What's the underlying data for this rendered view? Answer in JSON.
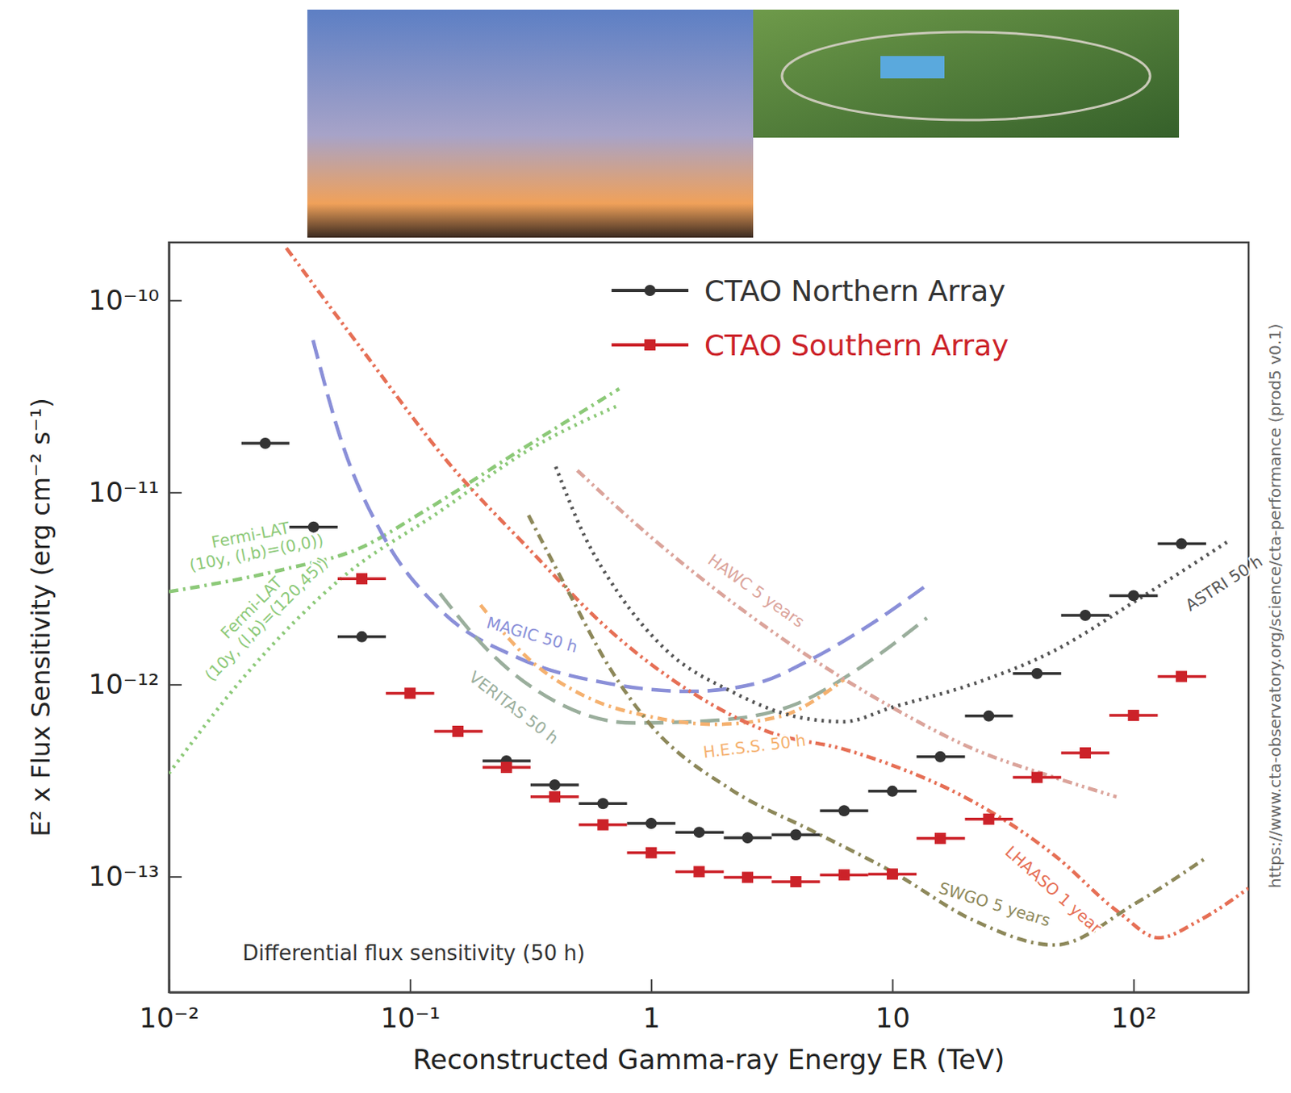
{
  "chart_data": {
    "type": "line",
    "x_label": "Reconstructed Gamma-ray Energy ER (TeV)",
    "y_label": "E² x Flux Sensitivity (erg cm⁻² s⁻¹)",
    "annotations": [
      "Differential flux sensitivity (50 h)",
      "https://www.cta-observatory.org/science/cta-performance (prod5 v0.1)"
    ],
    "log": true,
    "grid": false,
    "legend": "top",
    "xlim": [
      0.01,
      300
    ],
    "ylim": [
      2.5e-14,
      2e-10
    ],
    "xticks": [
      {
        "value": 0.01,
        "label": "10⁻²"
      },
      {
        "value": 0.1,
        "label": "10⁻¹"
      },
      1,
      10,
      {
        "value": 100,
        "label": "10²"
      }
    ],
    "yticks": [
      {
        "value": 1e-10,
        "label": "10⁻¹⁰"
      },
      {
        "value": 1e-11,
        "label": "10⁻¹¹"
      },
      {
        "value": 1e-12,
        "label": "10⁻¹²"
      },
      {
        "value": 1e-13,
        "label": "10⁻¹³"
      }
    ],
    "series": [
      {
        "name": "CTAO Northern Array",
        "type": "scatter",
        "marker": "circle",
        "color": "#333333",
        "x": [
          0.0251,
          0.0398,
          0.0631,
          0.1,
          0.158,
          0.251,
          0.398,
          0.631,
          1,
          1.58,
          2.51,
          3.98,
          6.31,
          10,
          15.8,
          25.1,
          39.8,
          63.1,
          100,
          158
        ],
        "bins": [
          0.02,
          0.0316,
          0.0501,
          0.0794,
          0.126,
          0.2,
          0.316,
          0.501,
          0.794,
          1.26,
          2,
          3.16,
          5.01,
          7.94,
          12.6,
          20,
          31.6,
          50.1,
          79.4,
          126,
          200
        ],
        "values": [
          1.8e-11,
          6.6e-12,
          1.77e-12,
          null,
          null,
          4e-13,
          3e-13,
          2.4e-13,
          1.89e-13,
          1.7e-13,
          1.59e-13,
          1.65e-13,
          2.2e-13,
          2.78e-13,
          4.2e-13,
          6.85e-13,
          1.14e-12,
          2.29e-12,
          2.9e-12,
          5.4e-12
        ]
      },
      {
        "name": "CTAO Southern Array",
        "type": "scatter",
        "marker": "square",
        "color": "#cc2229",
        "x": [
          0.0251,
          0.0398,
          0.0631,
          0.1,
          0.158,
          0.251,
          0.398,
          0.631,
          1,
          1.58,
          2.51,
          3.98,
          6.31,
          10,
          15.8,
          25.1,
          39.8,
          63.1,
          100,
          158
        ],
        "bins": [
          0.02,
          0.0316,
          0.0501,
          0.0794,
          0.126,
          0.2,
          0.316,
          0.501,
          0.794,
          1.26,
          2,
          3.16,
          5.01,
          7.94,
          12.6,
          20,
          31.6,
          50.1,
          79.4,
          126,
          200
        ],
        "values": [
          null,
          null,
          3.55e-12,
          9e-13,
          5.7e-13,
          3.7e-13,
          2.6e-13,
          1.86e-13,
          1.33e-13,
          1.06e-13,
          9.9e-14,
          9.4e-14,
          1.02e-13,
          1.03e-13,
          1.58e-13,
          1.99e-13,
          3.28e-13,
          4.4e-13,
          6.9e-13,
          1.1e-12
        ]
      },
      {
        "name": "Fermi-LAT (10y, (l,b)=(0,0))",
        "type": "line",
        "line_style": "dash-dot",
        "color": "#8cc978",
        "x": [
          0.01,
          0.0307,
          0.0615,
          0.114,
          0.287,
          0.737
        ],
        "values": [
          3.04e-12,
          4e-12,
          5.1e-12,
          7.96e-12,
          1.66e-11,
          3.46e-11
        ]
      },
      {
        "name": "Fermi-LAT (10y, (l,b)=(120,45))",
        "type": "line",
        "line_style": "dotted",
        "color": "#8cc978",
        "x": [
          0.01,
          0.0208,
          0.0527,
          0.133,
          0.31,
          0.737
        ],
        "values": [
          3.44e-13,
          1.12e-12,
          3.63e-12,
          7.96e-12,
          1.66e-11,
          2.85e-11
        ]
      },
      {
        "name": "MAGIC 50 h",
        "type": "line",
        "line_style": "dashed",
        "color": "#8a8fd8",
        "x": [
          0.0396,
          0.0527,
          0.0774,
          0.133,
          0.287,
          0.67,
          1.45,
          2.71,
          4.65,
          7.95,
          13.9
        ],
        "values": [
          6.2e-11,
          1.75e-11,
          5.93e-12,
          2.46e-12,
          1.36e-12,
          1.01e-12,
          9.2e-13,
          1.01e-12,
          1.36e-12,
          2.02e-12,
          3.29e-12
        ]
      },
      {
        "name": "VERITAS 50 h",
        "type": "line",
        "line_style": "dashed",
        "color": "#9aae9c",
        "x": [
          0.133,
          0.211,
          0.39,
          0.85,
          1.84,
          3.98,
          7.4,
          13.9
        ],
        "values": [
          2.98e-12,
          1.5e-12,
          8.3e-13,
          6.3e-13,
          6.5e-13,
          7.9e-13,
          1.23e-12,
          2.22e-12
        ]
      },
      {
        "name": "H.E.S.S. 50 h",
        "type": "line",
        "line_style": "dash-dot",
        "color": "#f5b16f",
        "x": [
          0.196,
          0.31,
          0.53,
          0.99,
          1.84,
          3.4,
          6.3
        ],
        "values": [
          2.59e-12,
          1.36e-12,
          8.7e-13,
          6.8e-13,
          6.2e-13,
          6.8e-13,
          1.06e-12
        ]
      },
      {
        "name": "HAWC 5 years",
        "type": "line",
        "line_style": "dash-dot-dot",
        "color": "#dba49b",
        "x": [
          0.494,
          0.99,
          2.15,
          4.65,
          9.97,
          21.8,
          47,
          85
        ],
        "values": [
          1.3e-11,
          5.9e-12,
          2.7e-12,
          1.36e-12,
          7.6e-13,
          4.6e-13,
          3.28e-13,
          2.6e-13
        ]
      },
      {
        "name": "LHAASO 1 year",
        "type": "line",
        "line_style": "dash-dot-dot",
        "color": "#e66f55",
        "x": [
          0.0307,
          0.0664,
          0.144,
          0.31,
          0.67,
          1.45,
          3.15,
          6.3,
          9.97,
          21.8,
          47,
          87,
          127,
          187,
          300
        ],
        "values": [
          1.87e-10,
          5.1e-11,
          1.43e-11,
          5.1e-12,
          1.92e-12,
          9.2e-13,
          5.6e-13,
          4.6e-13,
          3.8e-13,
          2.44e-13,
          1.29e-13,
          6.5e-14,
          4.8e-14,
          5.9e-14,
          8.7e-14
        ]
      },
      {
        "name": "SWGO 5 years",
        "type": "line",
        "line_style": "dash-dot",
        "color": "#8d885a",
        "x": [
          0.31,
          0.456,
          0.67,
          0.99,
          2.15,
          4.65,
          9.97,
          21.8,
          47,
          101,
          196
        ],
        "values": [
          7.6e-12,
          3e-12,
          1.23e-12,
          6.2e-13,
          2.83e-13,
          1.73e-13,
          1.06e-13,
          5.9e-14,
          4.4e-14,
          7.2e-14,
          1.23e-13
        ]
      },
      {
        "name": "ASTRI 50 h",
        "type": "line",
        "line_style": "dotted",
        "color": "#555555",
        "x": [
          0.402,
          0.53,
          0.73,
          1.16,
          2.15,
          3.98,
          6.3,
          9.97,
          21.8,
          47,
          101,
          249
        ],
        "values": [
          1.36e-11,
          5.9e-12,
          3e-12,
          1.5e-12,
          9.2e-13,
          6.8e-13,
          6.4e-13,
          7.6e-13,
          1.01e-12,
          1.5e-12,
          2.7e-12,
          5.6e-12
        ]
      }
    ]
  }
}
